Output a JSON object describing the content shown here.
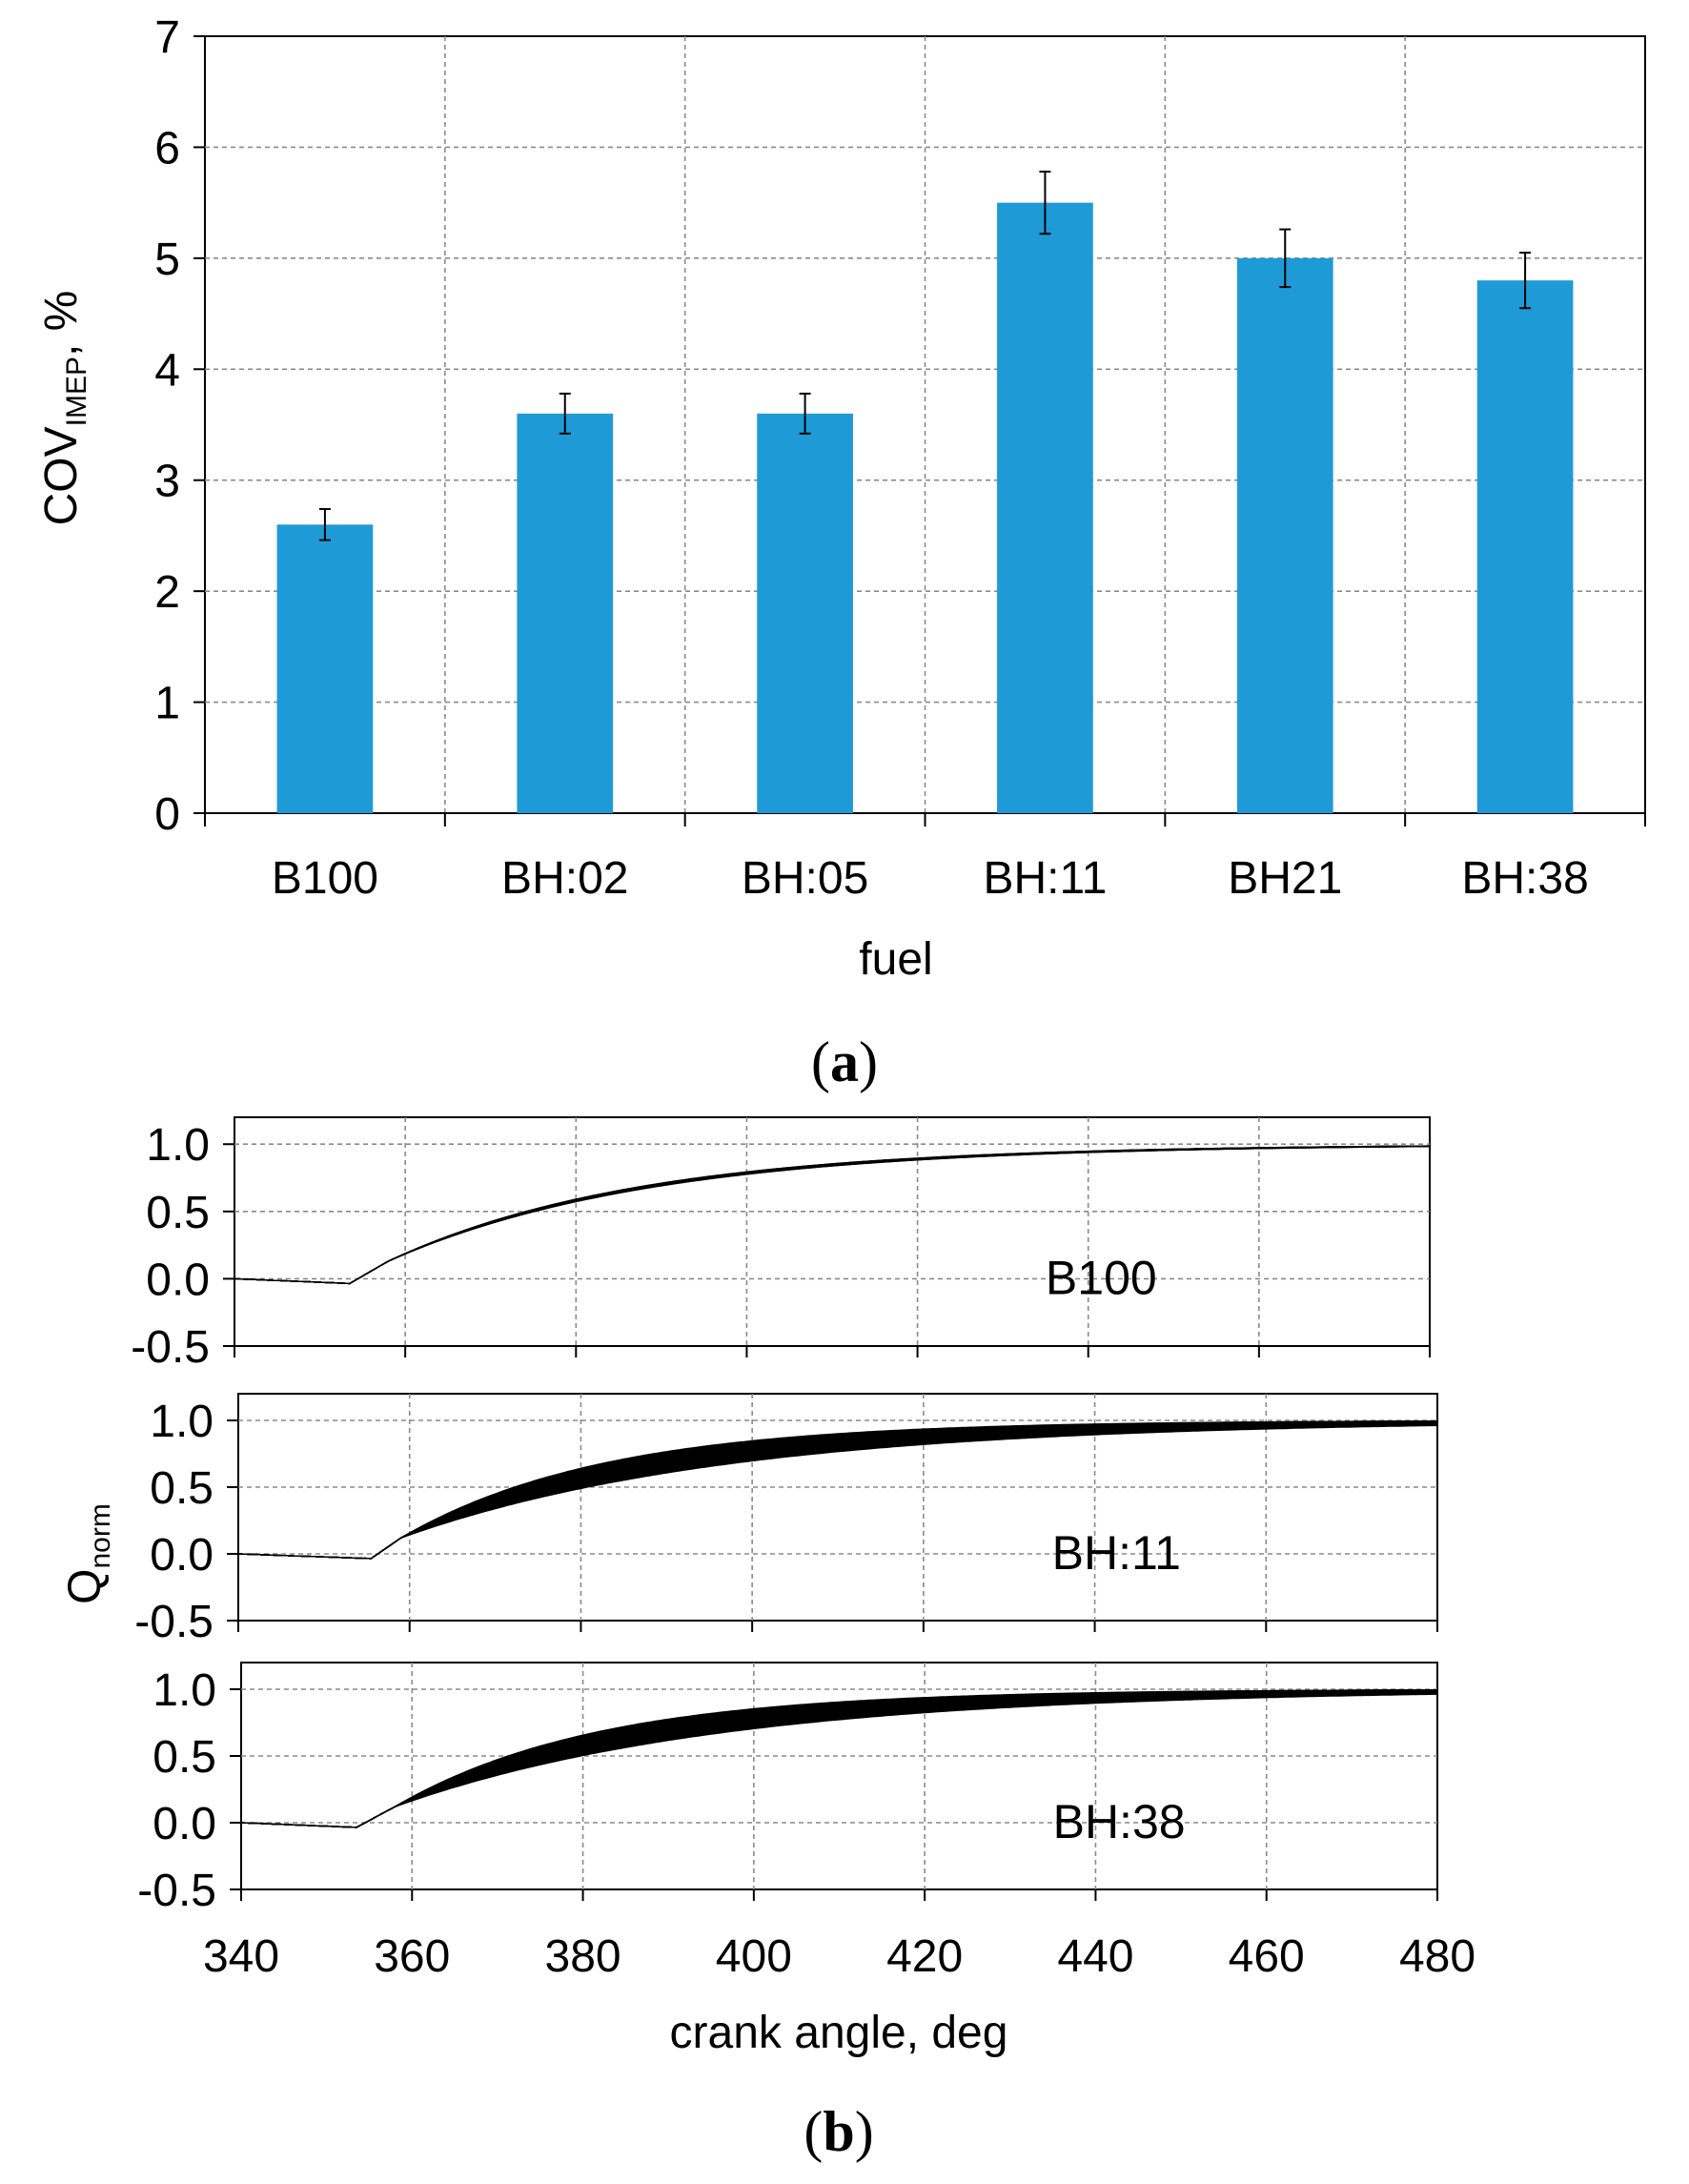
{
  "chart_data": [
    {
      "type": "bar",
      "panel": "(a)",
      "categories": [
        "B100",
        "BH:02",
        "BH:05",
        "BH:11",
        "BH21",
        "BH:38"
      ],
      "values": [
        2.6,
        3.6,
        3.6,
        5.5,
        5.0,
        4.8
      ],
      "error": [
        0.14,
        0.18,
        0.18,
        0.28,
        0.26,
        0.25
      ],
      "xlabel": "fuel",
      "ylabel_main": "COV",
      "ylabel_sub": "IMEP",
      "ylabel_suffix": ", %",
      "ylim": [
        0,
        7
      ],
      "yticks": [
        "0",
        "1",
        "2",
        "3",
        "4",
        "5",
        "6",
        "7"
      ],
      "grid": true,
      "color": "#1e9bd7"
    },
    {
      "type": "line",
      "panel": "(b)",
      "xlabel": "crank angle, deg",
      "ylabel_main": "Q",
      "ylabel_sub": "norm",
      "xlim": [
        340,
        480
      ],
      "xticks": [
        "340",
        "360",
        "380",
        "400",
        "420",
        "440",
        "460",
        "480"
      ],
      "ylim": [
        -0.5,
        1.2
      ],
      "yticks": [
        "-0.5",
        "0.0",
        "0.5",
        "1.0"
      ],
      "grid": true,
      "subplots": [
        {
          "label": "B100",
          "start": 353.5,
          "knee": 358,
          "kneeY": 0.13,
          "spreadLo": 0.97,
          "spreadHi": 1.03,
          "count": 18
        },
        {
          "label": "BH:11",
          "start": 355.5,
          "knee": 359,
          "kneeY": 0.12,
          "spreadLo": 0.78,
          "spreadHi": 1.28,
          "count": 30
        },
        {
          "label": "BH:38",
          "start": 353.5,
          "knee": 358,
          "kneeY": 0.12,
          "spreadLo": 0.78,
          "spreadHi": 1.28,
          "count": 30
        }
      ]
    }
  ],
  "captions": {
    "a": "a",
    "b": "b"
  }
}
